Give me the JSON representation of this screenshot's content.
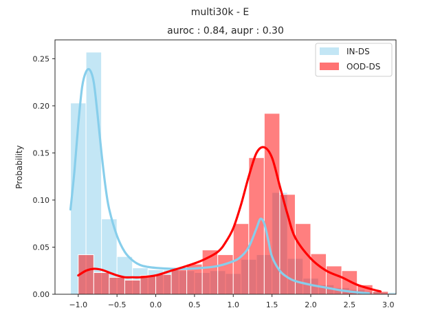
{
  "chart_data": {
    "type": "bar",
    "title": "multi30k - E",
    "subtitle": "auroc : 0.84, aupr : 0.30",
    "xlabel": "",
    "ylabel": "Probability",
    "xlim": [
      -1.3,
      3.1
    ],
    "ylim": [
      0,
      0.27
    ],
    "xticks": [
      -1.0,
      -0.5,
      0.0,
      0.5,
      1.0,
      1.5,
      2.0,
      2.5,
      3.0
    ],
    "xtick_labels": [
      "−1.0",
      "−0.5",
      "0.0",
      "0.5",
      "1.0",
      "1.5",
      "2.0",
      "2.5",
      "3.0"
    ],
    "yticks": [
      0.0,
      0.05,
      0.1,
      0.15,
      0.2,
      0.25
    ],
    "ytick_labels": [
      "0.00",
      "0.05",
      "0.10",
      "0.15",
      "0.20",
      "0.25"
    ],
    "grid": false,
    "legend_position": "top-right",
    "series": [
      {
        "name": "IN-DS",
        "color": "#87ceeb",
        "bin_width": 0.2,
        "bin_edges_start": -1.1,
        "hist": [
          0.203,
          0.257,
          0.08,
          0.04,
          0.028,
          0.026,
          0.026,
          0.025,
          0.023,
          0.025,
          0.022,
          0.037,
          0.042,
          0.108,
          0.038,
          0.017,
          0.01,
          0.007,
          0.005,
          0.003,
          0.002
        ],
        "kde_x": [
          -1.1,
          -1.05,
          -1.0,
          -0.95,
          -0.9,
          -0.85,
          -0.8,
          -0.75,
          -0.7,
          -0.65,
          -0.6,
          -0.5,
          -0.4,
          -0.3,
          -0.2,
          -0.1,
          0.0,
          0.2,
          0.4,
          0.6,
          0.8,
          1.0,
          1.1,
          1.2,
          1.3,
          1.35,
          1.4,
          1.45,
          1.5,
          1.6,
          1.7,
          1.8,
          2.0,
          2.2,
          2.4,
          2.6,
          2.75
        ],
        "kde_y": [
          0.09,
          0.13,
          0.18,
          0.22,
          0.236,
          0.238,
          0.225,
          0.19,
          0.15,
          0.115,
          0.09,
          0.062,
          0.045,
          0.036,
          0.031,
          0.029,
          0.028,
          0.027,
          0.027,
          0.028,
          0.03,
          0.035,
          0.04,
          0.05,
          0.07,
          0.08,
          0.075,
          0.058,
          0.04,
          0.025,
          0.018,
          0.014,
          0.01,
          0.007,
          0.004,
          0.002,
          0.001
        ]
      },
      {
        "name": "OOD-DS",
        "color": "#ff0000",
        "bin_width": 0.2,
        "bin_edges_start": -1.0,
        "hist": [
          0.042,
          0.023,
          0.018,
          0.015,
          0.02,
          0.021,
          0.026,
          0.032,
          0.047,
          0.042,
          0.075,
          0.145,
          0.192,
          0.106,
          0.075,
          0.043,
          0.03,
          0.025,
          0.01,
          0.003
        ],
        "kde_x": [
          -1.0,
          -0.9,
          -0.8,
          -0.7,
          -0.6,
          -0.5,
          -0.4,
          -0.3,
          -0.2,
          0.0,
          0.2,
          0.4,
          0.6,
          0.8,
          0.9,
          1.0,
          1.1,
          1.2,
          1.3,
          1.4,
          1.5,
          1.6,
          1.7,
          1.8,
          2.0,
          2.2,
          2.4,
          2.6,
          2.8,
          2.9
        ],
        "kde_y": [
          0.02,
          0.025,
          0.027,
          0.026,
          0.023,
          0.02,
          0.018,
          0.018,
          0.018,
          0.02,
          0.025,
          0.03,
          0.036,
          0.045,
          0.055,
          0.07,
          0.095,
          0.125,
          0.15,
          0.156,
          0.145,
          0.115,
          0.085,
          0.06,
          0.038,
          0.025,
          0.018,
          0.01,
          0.005,
          0.003
        ]
      }
    ]
  }
}
